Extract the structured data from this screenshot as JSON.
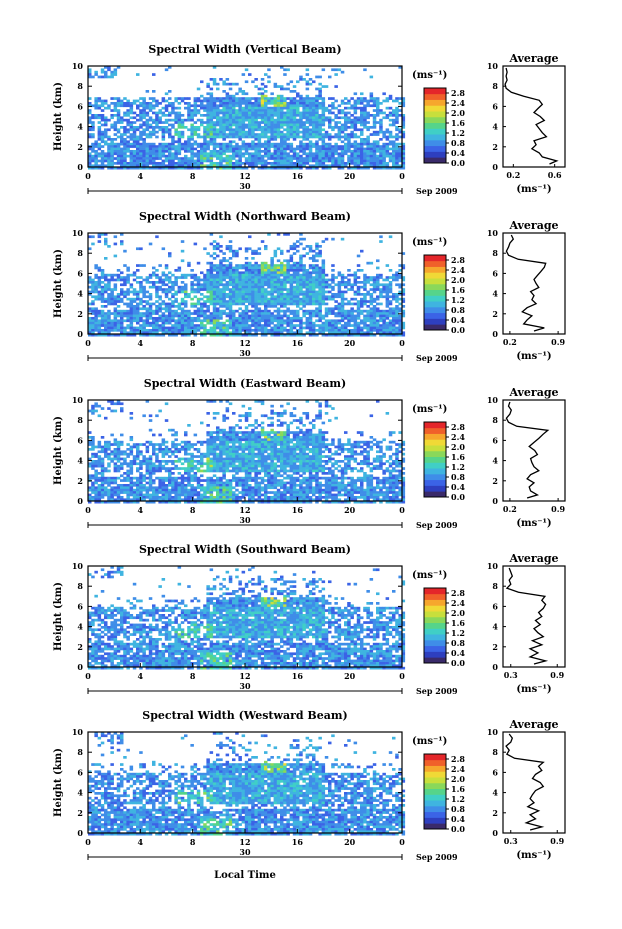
{
  "figure": {
    "time_axis_label": "Local Time",
    "day_marker": "30",
    "date_label": "Sep 2009"
  },
  "colors": {
    "colorbar": [
      "#3a2a6a",
      "#2e3fbf",
      "#3b63e6",
      "#3f8de8",
      "#3fb4e0",
      "#40cfc6",
      "#56d48a",
      "#8ad85a",
      "#c8df3c",
      "#f0d936",
      "#f6a62d",
      "#f0602a",
      "#e4262a"
    ],
    "profile_line": "#000000"
  },
  "chart_data": [
    {
      "type": "heatmap",
      "title": "Spectral Width (Vertical Beam)",
      "ylabel": "Height (km)",
      "x_ticks": [
        "0",
        "4",
        "8",
        "12",
        "16",
        "20",
        "0"
      ],
      "xlim": [
        0,
        24
      ],
      "ylim": [
        0,
        10
      ],
      "y_ticks": [
        "0",
        "2",
        "4",
        "6",
        "8",
        "10"
      ],
      "colorbar": {
        "unit": "(ms⁻¹)",
        "ticks": [
          "0.0",
          "0.4",
          "0.8",
          "1.2",
          "1.6",
          "2.0",
          "2.4",
          "2.8"
        ],
        "range": [
          0,
          3.0
        ]
      },
      "profile": {
        "title": "Average",
        "xlabel": "(ms⁻¹)",
        "x_ticks": [
          "0.2",
          "0.6"
        ],
        "xlim": [
          0.1,
          0.7
        ],
        "y_ticks": [
          "0",
          "2",
          "4",
          "6",
          "8",
          "10"
        ],
        "ylim": [
          0,
          10
        ],
        "heights": [
          0.3,
          0.6,
          1.0,
          1.4,
          1.8,
          2.2,
          2.6,
          3.0,
          3.4,
          3.8,
          4.2,
          4.6,
          5.0,
          5.4,
          5.8,
          6.2,
          6.6,
          7.0,
          7.4,
          7.8,
          8.2,
          8.6,
          9.0,
          9.4,
          9.8
        ],
        "values": [
          0.55,
          0.62,
          0.48,
          0.45,
          0.38,
          0.42,
          0.4,
          0.52,
          0.48,
          0.45,
          0.42,
          0.5,
          0.46,
          0.4,
          0.44,
          0.48,
          0.45,
          0.3,
          0.18,
          0.13,
          0.12,
          0.14,
          0.13,
          0.14,
          0.13
        ]
      }
    },
    {
      "type": "heatmap",
      "title": "Spectral Width (Northward Beam)",
      "ylabel": "Height (km)",
      "x_ticks": [
        "0",
        "4",
        "8",
        "12",
        "16",
        "20",
        "0"
      ],
      "xlim": [
        0,
        24
      ],
      "ylim": [
        0,
        10
      ],
      "y_ticks": [
        "0",
        "2",
        "4",
        "6",
        "8",
        "10"
      ],
      "colorbar": {
        "unit": "(ms⁻¹)",
        "ticks": [
          "0.0",
          "0.4",
          "0.8",
          "1.2",
          "1.6",
          "2.0",
          "2.4",
          "2.8"
        ],
        "range": [
          0,
          3.0
        ]
      },
      "profile": {
        "title": "Average",
        "xlabel": "(ms⁻¹)",
        "x_ticks": [
          "0.2",
          "0.9"
        ],
        "xlim": [
          0.1,
          1.0
        ],
        "y_ticks": [
          "0",
          "2",
          "4",
          "6",
          "8",
          "10"
        ],
        "ylim": [
          0,
          10
        ],
        "heights": [
          0.3,
          0.6,
          1.0,
          1.4,
          1.8,
          2.2,
          2.6,
          3.0,
          3.4,
          3.8,
          4.2,
          4.6,
          5.0,
          5.4,
          5.8,
          6.2,
          6.6,
          7.0,
          7.4,
          7.8,
          8.2,
          8.6,
          9.0,
          9.4,
          9.8
        ],
        "values": [
          0.55,
          0.7,
          0.4,
          0.45,
          0.52,
          0.38,
          0.45,
          0.58,
          0.52,
          0.55,
          0.5,
          0.62,
          0.58,
          0.55,
          0.6,
          0.65,
          0.7,
          0.72,
          0.32,
          0.18,
          0.15,
          0.18,
          0.2,
          0.25,
          0.22
        ]
      }
    },
    {
      "type": "heatmap",
      "title": "Spectral Width (Eastward Beam)",
      "ylabel": "Height (km)",
      "x_ticks": [
        "0",
        "4",
        "8",
        "12",
        "16",
        "20",
        "0"
      ],
      "xlim": [
        0,
        24
      ],
      "ylim": [
        0,
        10
      ],
      "y_ticks": [
        "0",
        "2",
        "4",
        "6",
        "8",
        "10"
      ],
      "colorbar": {
        "unit": "(ms⁻¹)",
        "ticks": [
          "0.0",
          "0.4",
          "0.8",
          "1.2",
          "1.6",
          "2.0",
          "2.4",
          "2.8"
        ],
        "range": [
          0,
          3.0
        ]
      },
      "profile": {
        "title": "Average",
        "xlabel": "(ms⁻¹)",
        "x_ticks": [
          "0.2",
          "0.9"
        ],
        "xlim": [
          0.1,
          1.0
        ],
        "y_ticks": [
          "0",
          "2",
          "4",
          "6",
          "8",
          "10"
        ],
        "ylim": [
          0,
          10
        ],
        "heights": [
          0.3,
          0.6,
          1.0,
          1.4,
          1.8,
          2.2,
          2.6,
          3.0,
          3.4,
          3.8,
          4.2,
          4.6,
          5.0,
          5.4,
          5.8,
          6.2,
          6.6,
          7.0,
          7.4,
          7.8,
          8.2,
          8.6,
          9.0,
          9.4,
          9.8
        ],
        "values": [
          0.45,
          0.6,
          0.5,
          0.48,
          0.55,
          0.45,
          0.5,
          0.62,
          0.55,
          0.52,
          0.5,
          0.6,
          0.56,
          0.48,
          0.55,
          0.62,
          0.68,
          0.75,
          0.3,
          0.18,
          0.15,
          0.2,
          0.22,
          0.18,
          0.2
        ]
      }
    },
    {
      "type": "heatmap",
      "title": "Spectral Width (Southward Beam)",
      "ylabel": "Height (km)",
      "x_ticks": [
        "0",
        "4",
        "8",
        "12",
        "16",
        "20",
        "0"
      ],
      "xlim": [
        0,
        24
      ],
      "ylim": [
        0,
        10
      ],
      "y_ticks": [
        "0",
        "2",
        "4",
        "6",
        "8",
        "10"
      ],
      "colorbar": {
        "unit": "(ms⁻¹)",
        "ticks": [
          "0.0",
          "0.4",
          "0.8",
          "1.2",
          "1.6",
          "2.0",
          "2.4",
          "2.8"
        ],
        "range": [
          0,
          3.0
        ]
      },
      "profile": {
        "title": "Average",
        "xlabel": "(ms⁻¹)",
        "x_ticks": [
          "0.3",
          "0.9"
        ],
        "xlim": [
          0.2,
          1.0
        ],
        "y_ticks": [
          "0",
          "2",
          "4",
          "6",
          "8",
          "10"
        ],
        "ylim": [
          0,
          10
        ],
        "heights": [
          0.3,
          0.6,
          1.0,
          1.4,
          1.8,
          2.2,
          2.6,
          3.0,
          3.4,
          3.8,
          4.2,
          4.6,
          5.0,
          5.4,
          5.8,
          6.2,
          6.6,
          7.0,
          7.4,
          7.8,
          8.2,
          8.6,
          9.0,
          9.4,
          9.8
        ],
        "values": [
          0.6,
          0.75,
          0.55,
          0.65,
          0.55,
          0.7,
          0.58,
          0.72,
          0.65,
          0.6,
          0.68,
          0.62,
          0.7,
          0.66,
          0.72,
          0.75,
          0.7,
          0.74,
          0.4,
          0.25,
          0.3,
          0.28,
          0.32,
          0.3,
          0.28
        ]
      }
    },
    {
      "type": "heatmap",
      "title": "Spectral Width (Westward Beam)",
      "ylabel": "Height (km)",
      "x_ticks": [
        "0",
        "4",
        "8",
        "12",
        "16",
        "20",
        "0"
      ],
      "xlim": [
        0,
        24
      ],
      "ylim": [
        0,
        10
      ],
      "y_ticks": [
        "0",
        "2",
        "4",
        "6",
        "8",
        "10"
      ],
      "colorbar": {
        "unit": "(ms⁻¹)",
        "ticks": [
          "0.0",
          "0.4",
          "0.8",
          "1.2",
          "1.6",
          "2.0",
          "2.4",
          "2.8"
        ],
        "range": [
          0,
          3.0
        ]
      },
      "profile": {
        "title": "Average",
        "xlabel": "(ms⁻¹)",
        "x_ticks": [
          "0.3",
          "0.9"
        ],
        "xlim": [
          0.2,
          1.0
        ],
        "y_ticks": [
          "0",
          "2",
          "4",
          "6",
          "8",
          "10"
        ],
        "ylim": [
          0,
          10
        ],
        "heights": [
          0.3,
          0.6,
          1.0,
          1.4,
          1.8,
          2.2,
          2.6,
          3.0,
          3.4,
          3.8,
          4.2,
          4.6,
          5.0,
          5.4,
          5.8,
          6.2,
          6.6,
          7.0,
          7.4,
          7.8,
          8.2,
          8.6,
          9.0,
          9.4,
          9.8
        ],
        "values": [
          0.55,
          0.7,
          0.5,
          0.62,
          0.55,
          0.66,
          0.52,
          0.6,
          0.55,
          0.58,
          0.62,
          0.72,
          0.68,
          0.58,
          0.62,
          0.7,
          0.66,
          0.72,
          0.35,
          0.25,
          0.28,
          0.24,
          0.3,
          0.32,
          0.28
        ]
      }
    }
  ]
}
